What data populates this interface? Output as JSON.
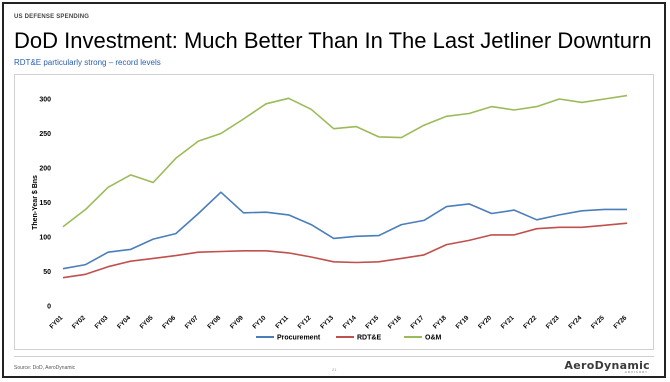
{
  "slide": {
    "tag": "US DEFENSE SPENDING",
    "title": "DoD Investment: Much Better Than In The Last Jetliner Downturn",
    "subtitle": "RDT&E particularly strong – record levels",
    "source": "Source: DoD, AeroDynamic",
    "page_number": "21",
    "logo_text": "AeroDynamic",
    "logo_subtext": "ADVISORY"
  },
  "chart_data": {
    "type": "line",
    "ylabel": "Then-Year $ Bns",
    "xlabel": "",
    "ylim": [
      0,
      300
    ],
    "yticks": [
      0,
      50,
      100,
      150,
      200,
      250,
      300
    ],
    "grid": false,
    "legend_position": "bottom",
    "categories": [
      "FY01",
      "FY02",
      "FY03",
      "FY04",
      "FY05",
      "FY06",
      "FY07",
      "FY08",
      "FY09",
      "FY10",
      "FY11",
      "FY12",
      "FY13",
      "FY14",
      "FY15",
      "FY16",
      "FY17",
      "FY18",
      "FY19",
      "FY20",
      "FY21",
      "FY22",
      "FY23",
      "FY24",
      "FY25",
      "FY26"
    ],
    "series": [
      {
        "name": "Procurement",
        "color": "#4a7ebb",
        "values": [
          54,
          60,
          78,
          82,
          97,
          105,
          134,
          165,
          135,
          136,
          132,
          118,
          98,
          101,
          102,
          118,
          124,
          144,
          148,
          134,
          139,
          125,
          132,
          138,
          140,
          140
        ]
      },
      {
        "name": "RDT&E",
        "color": "#c0504d",
        "values": [
          41,
          46,
          57,
          65,
          69,
          73,
          78,
          79,
          80,
          80,
          77,
          71,
          64,
          63,
          64,
          69,
          74,
          89,
          95,
          103,
          103,
          112,
          114,
          114,
          117,
          120
        ]
      },
      {
        "name": "O&M",
        "color": "#9bbb59",
        "values": [
          115,
          140,
          172,
          190,
          179,
          214,
          239,
          250,
          271,
          293,
          301,
          285,
          257,
          260,
          245,
          244,
          262,
          275,
          279,
          289,
          284,
          289,
          300,
          295,
          300,
          305
        ]
      }
    ]
  }
}
